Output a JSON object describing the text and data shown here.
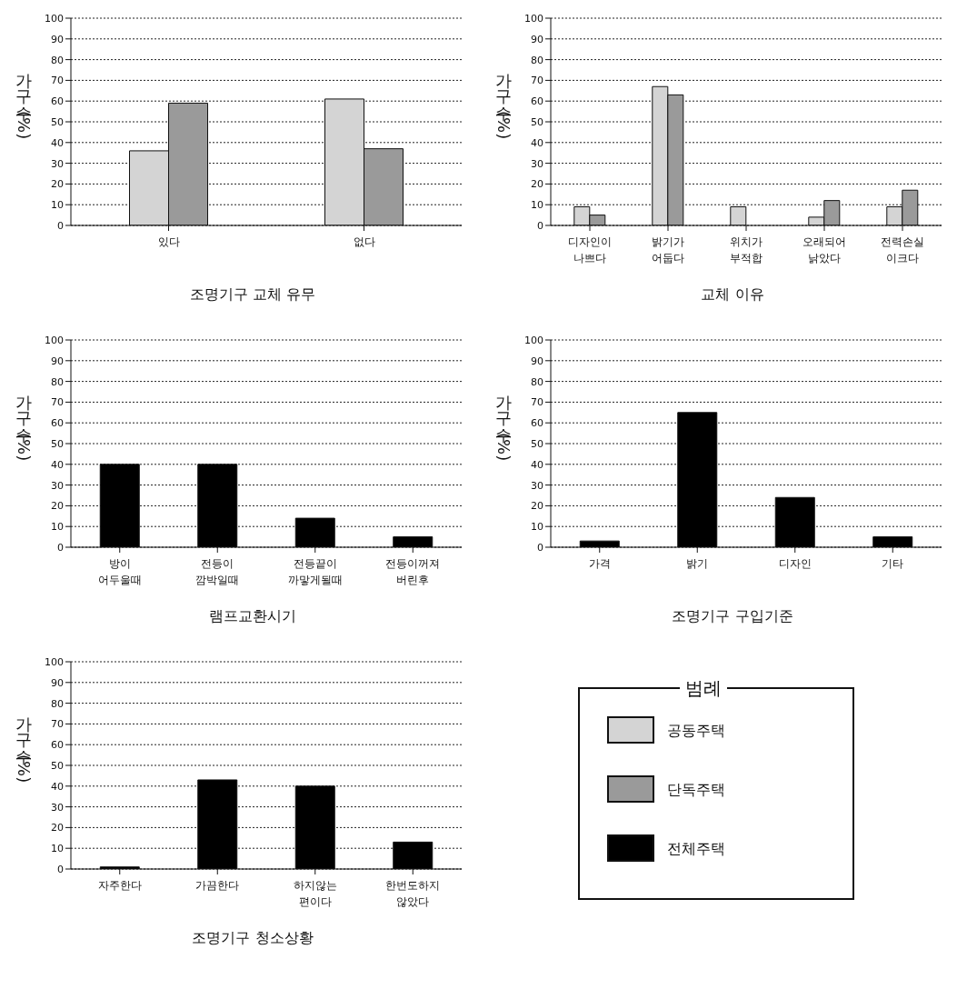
{
  "chart_data": [
    {
      "type": "bar",
      "title": "조명기구 교체 유무",
      "ylabel": "가구수(%)",
      "categories": [
        "있다",
        "없다"
      ],
      "ylim": [
        0,
        100
      ],
      "yticks": [
        0,
        10,
        20,
        30,
        40,
        50,
        60,
        70,
        80,
        90,
        100
      ],
      "grid": "y",
      "series": [
        {
          "color": "#d4d4d4",
          "values": [
            36,
            61
          ]
        },
        {
          "color": "#9a9a9a",
          "values": [
            59,
            37
          ]
        }
      ]
    },
    {
      "type": "bar",
      "title": "교체 이유",
      "ylabel": "가구수(%)",
      "categories": [
        "디자인이 나쁘다",
        "밝기가 어둡다",
        "위치가 부적합",
        "오래되어 낡았다",
        "전력손실 이크다"
      ],
      "ylim": [
        0,
        100
      ],
      "yticks": [
        0,
        10,
        20,
        30,
        40,
        50,
        60,
        70,
        80,
        90,
        100
      ],
      "grid": "y",
      "series": [
        {
          "color": "#d4d4d4",
          "values": [
            9,
            67,
            9,
            4,
            9
          ]
        },
        {
          "color": "#9a9a9a",
          "values": [
            5,
            63,
            0,
            12,
            17
          ]
        }
      ]
    },
    {
      "type": "bar",
      "title": "램프교환시기",
      "ylabel": "가구수(%)",
      "categories": [
        "방이 어두울때",
        "전등이 깜박일때",
        "전등끝이 까맣게될때",
        "전등이꺼져 버린후"
      ],
      "ylim": [
        0,
        100
      ],
      "yticks": [
        0,
        10,
        20,
        30,
        40,
        50,
        60,
        70,
        80,
        90,
        100
      ],
      "grid": "y",
      "series": [
        {
          "color": "#000000",
          "values": [
            40,
            40,
            14,
            5
          ]
        }
      ]
    },
    {
      "type": "bar",
      "title": "조명기구 구입기준",
      "ylabel": "가구수(%)",
      "categories": [
        "가격",
        "밝기",
        "디자인",
        "기타"
      ],
      "ylim": [
        0,
        100
      ],
      "yticks": [
        0,
        10,
        20,
        30,
        40,
        50,
        60,
        70,
        80,
        90,
        100
      ],
      "grid": "y",
      "series": [
        {
          "color": "#000000",
          "values": [
            3,
            65,
            24,
            5
          ]
        }
      ]
    },
    {
      "type": "bar",
      "title": "조명기구 청소상황",
      "ylabel": "가구수(%)",
      "categories": [
        "자주한다",
        "가끔한다",
        "하지않는 편이다",
        "한번도하지 않았다"
      ],
      "ylim": [
        0,
        100
      ],
      "yticks": [
        0,
        10,
        20,
        30,
        40,
        50,
        60,
        70,
        80,
        90,
        100
      ],
      "grid": "y",
      "series": [
        {
          "color": "#000000",
          "values": [
            1,
            43,
            40,
            13
          ]
        }
      ]
    },
    {
      "type": "other",
      "legend_title": "범례",
      "series": [
        {
          "name": "공동주택",
          "color": "#d4d4d4"
        },
        {
          "name": "단독주택",
          "color": "#9a9a9a"
        },
        {
          "name": "전체주택",
          "color": "#000000"
        }
      ]
    }
  ]
}
